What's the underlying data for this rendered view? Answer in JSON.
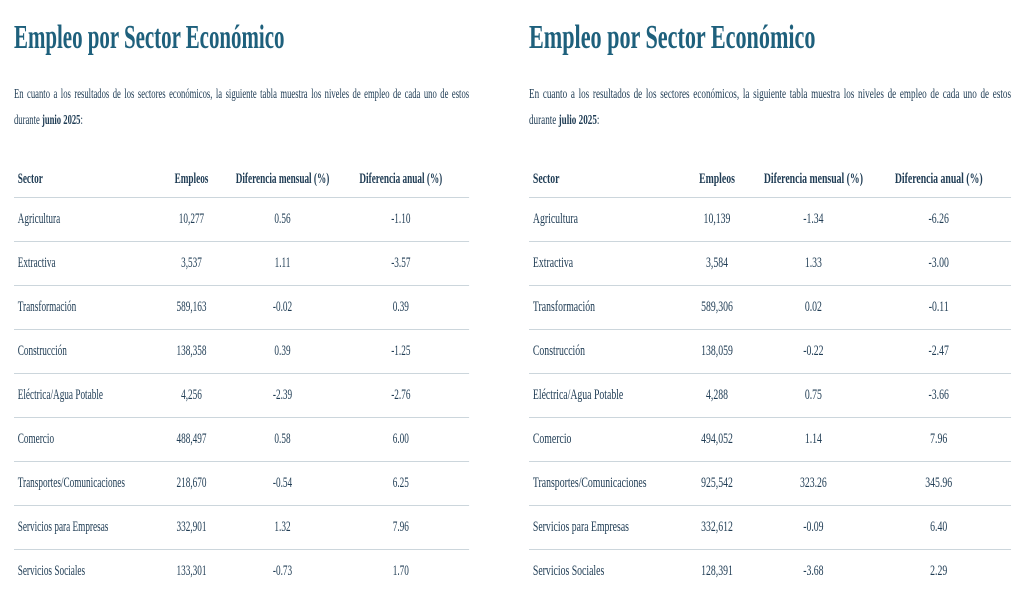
{
  "colors": {
    "title": "#1e607c",
    "text": "#203d55",
    "divider": "#ccd6dc"
  },
  "sections": [
    {
      "title": "Empleo por Sector Económico",
      "intro_text": "En cuanto a los resultados de los sectores económicos, la siguiente tabla muestra los niveles de empleo de cada uno de estos",
      "intro_tail": "durante ",
      "intro_bold": "junio 2025",
      "intro_suffix": ":",
      "table": {
        "headers": [
          "Sector",
          "Empleos",
          "Diferencia mensual (%)",
          "Diferencia anual (%)"
        ],
        "rows": [
          [
            "Agricultura",
            "10,277",
            "0.56",
            "-1.10"
          ],
          [
            "Extractiva",
            "3,537",
            "1.11",
            "-3.57"
          ],
          [
            "Transformación",
            "589,163",
            "-0.02",
            "0.39"
          ],
          [
            "Construcción",
            "138,358",
            "0.39",
            "-1.25"
          ],
          [
            "Eléctrica/Agua Potable",
            "4,256",
            "-2.39",
            "-2.76"
          ],
          [
            "Comercio",
            "488,497",
            "0.58",
            "6.00"
          ],
          [
            "Transportes/Comunicaciones",
            "218,670",
            "-0.54",
            "6.25"
          ],
          [
            "Servicios para Empresas",
            "332,901",
            "1.32",
            "7.96"
          ],
          [
            "Servicios Sociales",
            "133,301",
            "-0.73",
            "1.70"
          ]
        ]
      }
    },
    {
      "title": "Empleo por Sector Económico",
      "intro_text": "En cuanto a los resultados de los sectores económicos, la siguiente tabla muestra los niveles de empleo de cada uno de estos",
      "intro_tail": "durante ",
      "intro_bold": "julio 2025",
      "intro_suffix": ":",
      "table": {
        "headers": [
          "Sector",
          "Empleos",
          "Diferencia mensual (%)",
          "Diferencia anual (%)"
        ],
        "rows": [
          [
            "Agricultura",
            "10,139",
            "-1.34",
            "-6.26"
          ],
          [
            "Extractiva",
            "3,584",
            "1.33",
            "-3.00"
          ],
          [
            "Transformación",
            "589,306",
            "0.02",
            "-0.11"
          ],
          [
            "Construcción",
            "138,059",
            "-0.22",
            "-2.47"
          ],
          [
            "Eléctrica/Agua Potable",
            "4,288",
            "0.75",
            "-3.66"
          ],
          [
            "Comercio",
            "494,052",
            "1.14",
            "7.96"
          ],
          [
            "Transportes/Comunicaciones",
            "925,542",
            "323.26",
            "345.96"
          ],
          [
            "Servicios para Empresas",
            "332,612",
            "-0.09",
            "6.40"
          ],
          [
            "Servicios Sociales",
            "128,391",
            "-3.68",
            "2.29"
          ]
        ]
      }
    }
  ]
}
